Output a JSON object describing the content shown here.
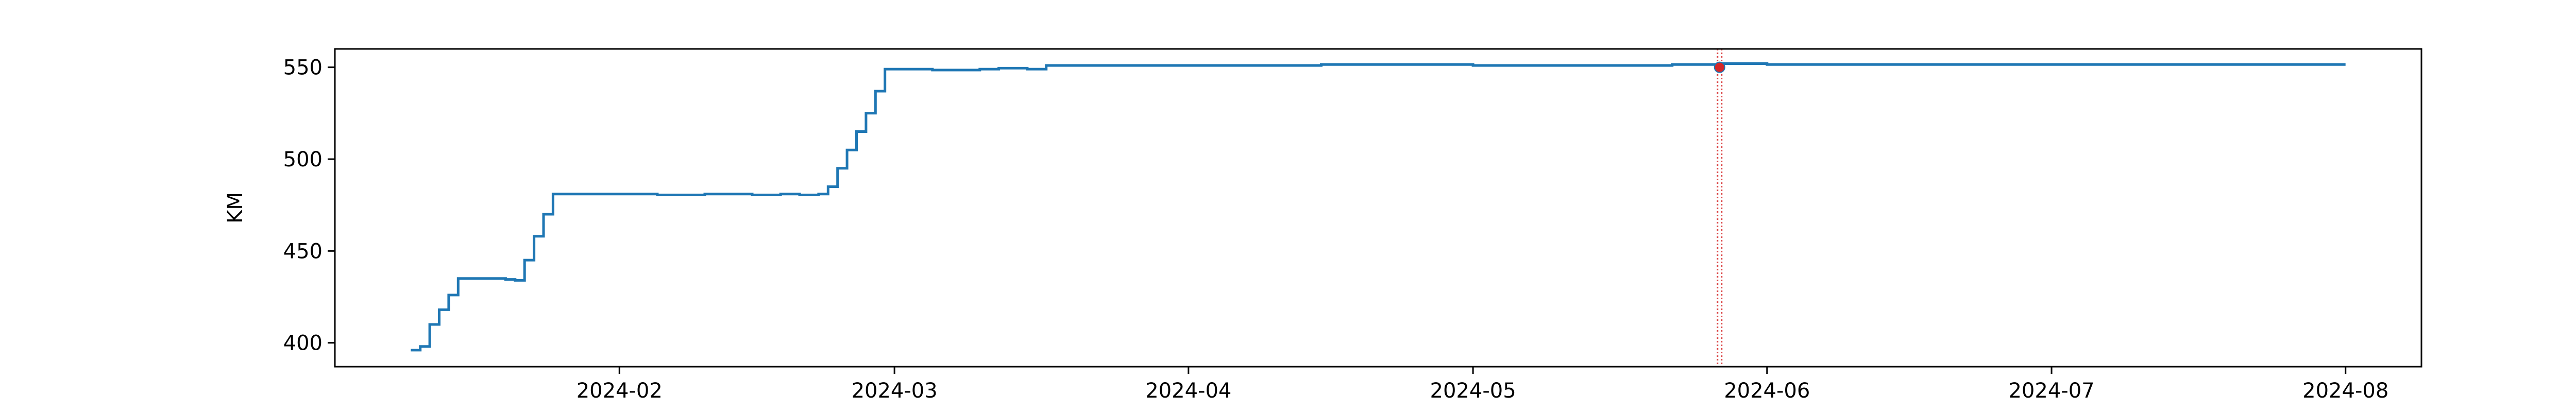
{
  "chart_data": {
    "type": "line",
    "title": "",
    "xlabel": "",
    "ylabel": "KM",
    "grid": false,
    "xlim": [
      "2024-01-02",
      "2024-08-09"
    ],
    "ylim": [
      387,
      560
    ],
    "x_ticks": [
      "2024-02-01",
      "2024-03-01",
      "2024-04-01",
      "2024-05-01",
      "2024-06-01",
      "2024-07-01",
      "2024-08-01"
    ],
    "x_tick_labels": [
      "2024-02",
      "2024-03",
      "2024-04",
      "2024-05",
      "2024-06",
      "2024-07",
      "2024-08"
    ],
    "y_ticks": [
      400,
      450,
      500,
      550
    ],
    "y_tick_labels": [
      "400",
      "450",
      "500",
      "550"
    ],
    "series": [
      {
        "color": "#1f77b4",
        "points": [
          [
            "2024-01-10",
            396
          ],
          [
            "2024-01-11",
            398
          ],
          [
            "2024-01-12",
            410
          ],
          [
            "2024-01-13",
            418
          ],
          [
            "2024-01-14",
            426
          ],
          [
            "2024-01-15",
            435
          ],
          [
            "2024-01-18",
            435
          ],
          [
            "2024-01-20",
            434.5
          ],
          [
            "2024-01-21",
            434
          ],
          [
            "2024-01-22",
            445
          ],
          [
            "2024-01-23",
            458
          ],
          [
            "2024-01-24",
            470
          ],
          [
            "2024-01-25",
            481
          ],
          [
            "2024-01-29",
            481
          ],
          [
            "2024-02-01",
            481
          ],
          [
            "2024-02-05",
            480.5
          ],
          [
            "2024-02-10",
            481
          ],
          [
            "2024-02-15",
            480.5
          ],
          [
            "2024-02-18",
            481
          ],
          [
            "2024-02-20",
            480.5
          ],
          [
            "2024-02-22",
            481
          ],
          [
            "2024-02-23",
            485
          ],
          [
            "2024-02-24",
            495
          ],
          [
            "2024-02-25",
            505
          ],
          [
            "2024-02-26",
            515
          ],
          [
            "2024-02-27",
            525
          ],
          [
            "2024-02-28",
            537
          ],
          [
            "2024-02-29",
            549
          ],
          [
            "2024-03-05",
            548.5
          ],
          [
            "2024-03-10",
            549
          ],
          [
            "2024-03-12",
            549.5
          ],
          [
            "2024-03-15",
            549
          ],
          [
            "2024-03-17",
            551
          ],
          [
            "2024-04-01",
            551
          ],
          [
            "2024-04-15",
            551.5
          ],
          [
            "2024-05-01",
            551
          ],
          [
            "2024-05-15",
            551
          ],
          [
            "2024-05-22",
            551.5
          ],
          [
            "2024-05-27",
            552
          ],
          [
            "2024-06-01",
            551.5
          ],
          [
            "2024-06-15",
            551.5
          ],
          [
            "2024-07-01",
            551.5
          ],
          [
            "2024-07-15",
            551.5
          ],
          [
            "2024-08-01",
            551.5
          ]
        ]
      }
    ],
    "marker": {
      "date": "2024-05-27",
      "value": 550,
      "color": "#d62728"
    },
    "vline": {
      "date": "2024-05-27",
      "color": "#d62728",
      "style": "dotted"
    }
  }
}
